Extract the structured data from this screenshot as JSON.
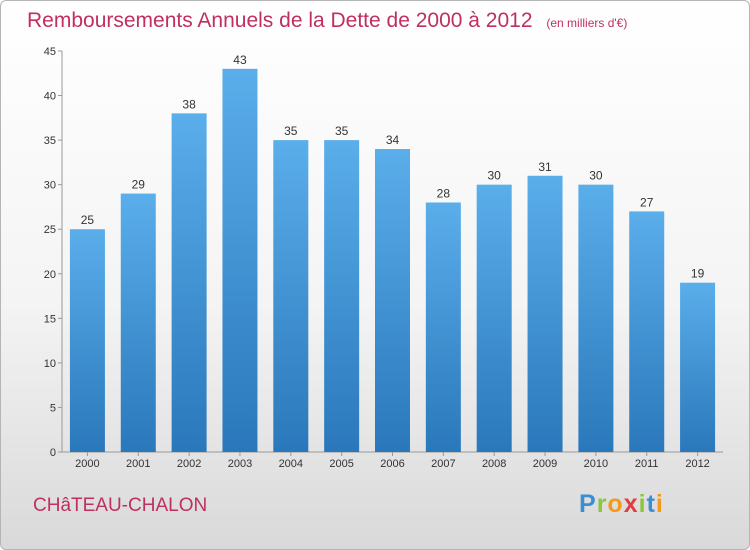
{
  "header": {
    "title": "Remboursements Annuels de la Dette de 2000 à 2012",
    "subtitle": "(en milliers d'€)"
  },
  "footer": {
    "town": "CHâTEAU-CHALON",
    "logo": "Proxiti"
  },
  "colors": {
    "accent": "#c0305e",
    "bar_top": "#5aaeea",
    "bar_bottom": "#2a78bb"
  },
  "chart_data": {
    "type": "bar",
    "title": "Remboursements Annuels de la Dette de 2000 à 2012",
    "subtitle": "(en milliers d'€)",
    "xlabel": "",
    "ylabel": "",
    "categories": [
      "2000",
      "2001",
      "2002",
      "2003",
      "2004",
      "2005",
      "2006",
      "2007",
      "2008",
      "2009",
      "2010",
      "2011",
      "2012"
    ],
    "values": [
      25,
      29,
      38,
      43,
      35,
      35,
      34,
      28,
      30,
      31,
      30,
      27,
      19
    ],
    "ylim": [
      0,
      45
    ],
    "yticks": [
      0,
      5,
      10,
      15,
      20,
      25,
      30,
      35,
      40,
      45
    ],
    "grid": false,
    "legend": "none"
  }
}
